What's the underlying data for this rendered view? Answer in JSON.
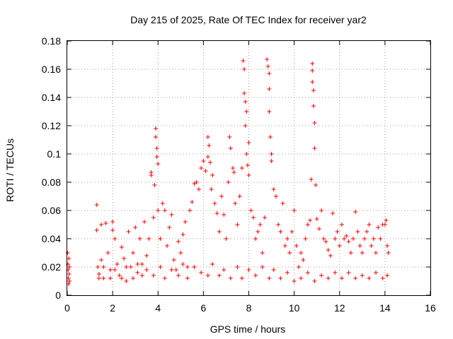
{
  "chart_data": {
    "type": "scatter",
    "title": "Day 215 of 2025, Rate Of TEC Index for receiver yar2",
    "xlabel": "GPS time / hours",
    "ylabel": "ROTI / TECUs",
    "xlim": [
      0,
      16
    ],
    "ylim": [
      0,
      0.18
    ],
    "xticks": [
      0,
      2,
      4,
      6,
      8,
      10,
      12,
      14,
      16
    ],
    "xtick_labels": [
      "0",
      "2",
      "4",
      "6",
      "8",
      "10",
      "12",
      "14",
      "16"
    ],
    "yticks": [
      0,
      0.02,
      0.04,
      0.06,
      0.08,
      0.1,
      0.12,
      0.14,
      0.16,
      0.18
    ],
    "ytick_labels": [
      "0",
      "0.02",
      "0.04",
      "0.06",
      "0.08",
      "0.1",
      "0.12",
      "0.14",
      "0.16",
      "0.18"
    ],
    "grid": true,
    "marker": "+",
    "color": "#ff0000",
    "series": [
      {
        "name": "ROTI",
        "points": [
          [
            0.02,
            0.03
          ],
          [
            0.03,
            0.022
          ],
          [
            0.04,
            0.018
          ],
          [
            0.05,
            0.012
          ],
          [
            0.06,
            0.008
          ],
          [
            0.07,
            0.026
          ],
          [
            0.08,
            0.015
          ],
          [
            0.1,
            0.02
          ],
          [
            0.1,
            0.01
          ],
          [
            1.3,
            0.064
          ],
          [
            1.3,
            0.046
          ],
          [
            1.35,
            0.02
          ],
          [
            1.4,
            0.015
          ],
          [
            1.5,
            0.05
          ],
          [
            1.5,
            0.025
          ],
          [
            1.6,
            0.012
          ],
          [
            1.7,
            0.051
          ],
          [
            1.8,
            0.03
          ],
          [
            1.9,
            0.018
          ],
          [
            2.0,
            0.052
          ],
          [
            2.0,
            0.046
          ],
          [
            2.1,
            0.04
          ],
          [
            2.2,
            0.022
          ],
          [
            2.3,
            0.014
          ],
          [
            2.4,
            0.034
          ],
          [
            2.5,
            0.026
          ],
          [
            2.6,
            0.01
          ],
          [
            2.7,
            0.045
          ],
          [
            2.8,
            0.02
          ],
          [
            2.9,
            0.03
          ],
          [
            3.0,
            0.048
          ],
          [
            3.1,
            0.016
          ],
          [
            3.2,
            0.04
          ],
          [
            3.3,
            0.022
          ],
          [
            3.4,
            0.052
          ],
          [
            3.5,
            0.028
          ],
          [
            3.6,
            0.04
          ],
          [
            3.7,
            0.087
          ],
          [
            3.7,
            0.085
          ],
          [
            3.8,
            0.055
          ],
          [
            3.85,
            0.078
          ],
          [
            3.9,
            0.118
          ],
          [
            3.9,
            0.112
          ],
          [
            3.95,
            0.104
          ],
          [
            3.95,
            0.098
          ],
          [
            4.0,
            0.093
          ],
          [
            4.0,
            0.06
          ],
          [
            4.1,
            0.04
          ],
          [
            4.2,
            0.065
          ],
          [
            4.3,
            0.06
          ],
          [
            4.4,
            0.035
          ],
          [
            4.5,
            0.048
          ],
          [
            4.6,
            0.057
          ],
          [
            4.7,
            0.025
          ],
          [
            4.8,
            0.018
          ],
          [
            4.9,
            0.038
          ],
          [
            5.0,
            0.03
          ],
          [
            5.1,
            0.043
          ],
          [
            5.2,
            0.052
          ],
          [
            5.3,
            0.02
          ],
          [
            5.4,
            0.06
          ],
          [
            5.5,
            0.066
          ],
          [
            5.6,
            0.079
          ],
          [
            5.7,
            0.08
          ],
          [
            5.8,
            0.075
          ],
          [
            5.9,
            0.09
          ],
          [
            6.0,
            0.095
          ],
          [
            6.1,
            0.088
          ],
          [
            6.2,
            0.098
          ],
          [
            6.2,
            0.112
          ],
          [
            6.25,
            0.106
          ],
          [
            6.3,
            0.094
          ],
          [
            6.35,
            0.075
          ],
          [
            6.4,
            0.085
          ],
          [
            6.5,
            0.065
          ],
          [
            6.6,
            0.058
          ],
          [
            6.7,
            0.045
          ],
          [
            6.8,
            0.07
          ],
          [
            6.9,
            0.057
          ],
          [
            7.0,
            0.04
          ],
          [
            7.1,
            0.08
          ],
          [
            7.15,
            0.112
          ],
          [
            7.2,
            0.104
          ],
          [
            7.3,
            0.09
          ],
          [
            7.35,
            0.087
          ],
          [
            7.4,
            0.065
          ],
          [
            7.5,
            0.05
          ],
          [
            7.6,
            0.07
          ],
          [
            7.7,
            0.09
          ],
          [
            7.75,
            0.166
          ],
          [
            7.8,
            0.16
          ],
          [
            7.8,
            0.143
          ],
          [
            7.85,
            0.137
          ],
          [
            7.85,
            0.12
          ],
          [
            7.9,
            0.13
          ],
          [
            7.9,
            0.1
          ],
          [
            7.95,
            0.092
          ],
          [
            8.0,
            0.108
          ],
          [
            8.0,
            0.085
          ],
          [
            8.1,
            0.06
          ],
          [
            8.2,
            0.055
          ],
          [
            8.3,
            0.04
          ],
          [
            8.4,
            0.045
          ],
          [
            8.5,
            0.05
          ],
          [
            8.6,
            0.03
          ],
          [
            8.7,
            0.055
          ],
          [
            8.8,
            0.167
          ],
          [
            8.85,
            0.162
          ],
          [
            8.9,
            0.157
          ],
          [
            8.9,
            0.146
          ],
          [
            8.9,
            0.13
          ],
          [
            8.95,
            0.112
          ],
          [
            9.0,
            0.1
          ],
          [
            9.0,
            0.095
          ],
          [
            9.1,
            0.075
          ],
          [
            9.2,
            0.07
          ],
          [
            9.3,
            0.05
          ],
          [
            9.4,
            0.045
          ],
          [
            9.5,
            0.065
          ],
          [
            9.6,
            0.035
          ],
          [
            9.7,
            0.04
          ],
          [
            9.8,
            0.03
          ],
          [
            9.9,
            0.045
          ],
          [
            10.0,
            0.06
          ],
          [
            10.1,
            0.035
          ],
          [
            10.2,
            0.02
          ],
          [
            10.3,
            0.03
          ],
          [
            10.4,
            0.025
          ],
          [
            10.5,
            0.04
          ],
          [
            10.6,
            0.05
          ],
          [
            10.7,
            0.053
          ],
          [
            10.75,
            0.082
          ],
          [
            10.8,
            0.164
          ],
          [
            10.8,
            0.159
          ],
          [
            10.8,
            0.151
          ],
          [
            10.85,
            0.145
          ],
          [
            10.85,
            0.134
          ],
          [
            10.9,
            0.122
          ],
          [
            10.9,
            0.104
          ],
          [
            10.95,
            0.078
          ],
          [
            11.0,
            0.054
          ],
          [
            11.1,
            0.047
          ],
          [
            11.2,
            0.06
          ],
          [
            11.3,
            0.04
          ],
          [
            11.4,
            0.038
          ],
          [
            11.5,
            0.032
          ],
          [
            11.6,
            0.028
          ],
          [
            11.7,
            0.058
          ],
          [
            11.8,
            0.04
          ],
          [
            11.9,
            0.045
          ],
          [
            12.0,
            0.035
          ],
          [
            12.1,
            0.05
          ],
          [
            12.2,
            0.04
          ],
          [
            12.3,
            0.042
          ],
          [
            12.4,
            0.038
          ],
          [
            12.5,
            0.03
          ],
          [
            12.6,
            0.04
          ],
          [
            12.7,
            0.059
          ],
          [
            12.8,
            0.045
          ],
          [
            12.9,
            0.035
          ],
          [
            13.0,
            0.03
          ],
          [
            13.1,
            0.04
          ],
          [
            13.2,
            0.045
          ],
          [
            13.3,
            0.05
          ],
          [
            13.4,
            0.035
          ],
          [
            13.5,
            0.04
          ],
          [
            13.6,
            0.03
          ],
          [
            13.7,
            0.048
          ],
          [
            13.8,
            0.04
          ],
          [
            13.9,
            0.05
          ],
          [
            14.0,
            0.05
          ],
          [
            14.05,
            0.053
          ],
          [
            14.1,
            0.035
          ],
          [
            14.15,
            0.03
          ],
          [
            1.4,
            0.012
          ],
          [
            1.6,
            0.02
          ],
          [
            1.9,
            0.012
          ],
          [
            2.1,
            0.018
          ],
          [
            2.4,
            0.012
          ],
          [
            2.6,
            0.02
          ],
          [
            2.9,
            0.012
          ],
          [
            3.1,
            0.022
          ],
          [
            3.3,
            0.014
          ],
          [
            3.5,
            0.018
          ],
          [
            3.8,
            0.014
          ],
          [
            4.1,
            0.02
          ],
          [
            4.3,
            0.012
          ],
          [
            4.6,
            0.018
          ],
          [
            4.9,
            0.014
          ],
          [
            5.1,
            0.022
          ],
          [
            5.3,
            0.012
          ],
          [
            5.6,
            0.02
          ],
          [
            5.9,
            0.016
          ],
          [
            6.2,
            0.014
          ],
          [
            6.4,
            0.022
          ],
          [
            6.7,
            0.014
          ],
          [
            6.9,
            0.018
          ],
          [
            7.2,
            0.012
          ],
          [
            7.5,
            0.02
          ],
          [
            7.7,
            0.012
          ],
          [
            8.0,
            0.018
          ],
          [
            8.3,
            0.014
          ],
          [
            8.6,
            0.02
          ],
          [
            8.9,
            0.012
          ],
          [
            9.1,
            0.018
          ],
          [
            9.4,
            0.012
          ],
          [
            9.7,
            0.016
          ],
          [
            10.0,
            0.01
          ],
          [
            10.3,
            0.012
          ],
          [
            10.6,
            0.016
          ],
          [
            10.9,
            0.01
          ],
          [
            11.2,
            0.014
          ],
          [
            11.5,
            0.012
          ],
          [
            11.8,
            0.016
          ],
          [
            12.1,
            0.012
          ],
          [
            12.4,
            0.016
          ],
          [
            12.7,
            0.012
          ],
          [
            13.0,
            0.014
          ],
          [
            13.3,
            0.012
          ],
          [
            13.6,
            0.016
          ],
          [
            13.9,
            0.012
          ],
          [
            14.1,
            0.014
          ]
        ]
      }
    ]
  }
}
